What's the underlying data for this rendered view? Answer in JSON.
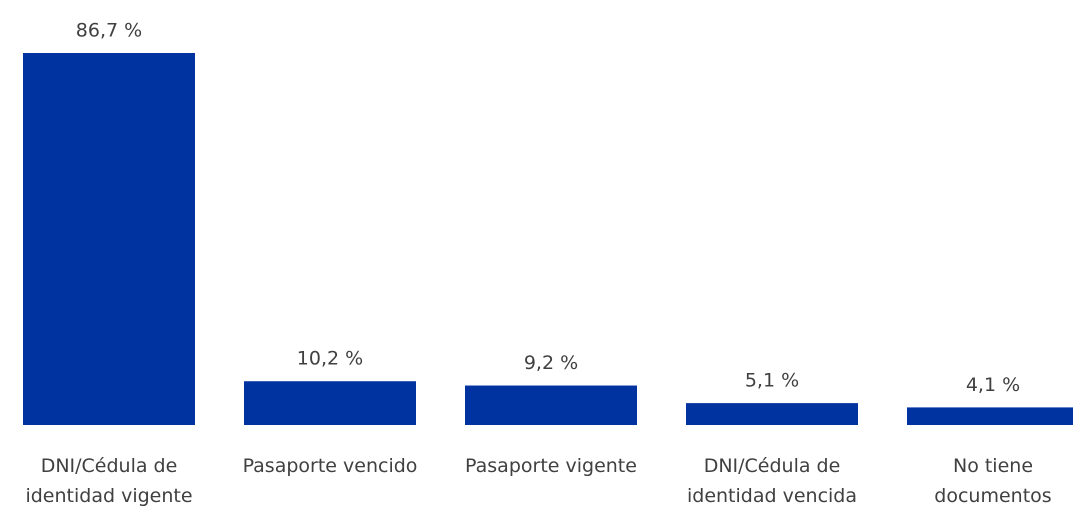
{
  "chart_data": {
    "type": "bar",
    "categories": [
      "DNI/Cédula de\nidentidad vigente",
      "Pasaporte vencido",
      "Pasaporte vigente",
      "DNI/Cédula de\nidentidad vencida",
      "No tiene\ndocumentos"
    ],
    "values": [
      86.7,
      10.2,
      9.2,
      5.1,
      4.1
    ],
    "value_labels": [
      "86,7 %",
      "10,2 %",
      "9,2 %",
      "5,1 %",
      "4,1 %"
    ],
    "color": "#0033a0"
  }
}
